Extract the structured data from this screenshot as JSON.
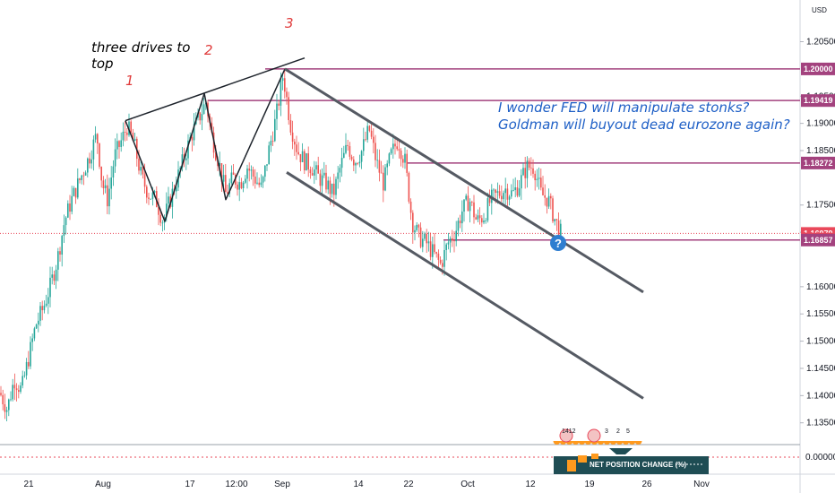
{
  "chart_data": {
    "type": "candlestick",
    "currency_label": "USD",
    "price_ticks": [
      "1.20500",
      "1.19500",
      "1.19000",
      "1.18500",
      "1.17500",
      "1.17000",
      "1.16000",
      "1.15500",
      "1.15000",
      "1.14500",
      "1.14000",
      "1.13500"
    ],
    "price_tick_values": [
      1.205,
      1.195,
      1.19,
      1.185,
      1.175,
      1.17,
      1.16,
      1.155,
      1.15,
      1.145,
      1.14,
      1.135
    ],
    "ylim": [
      1.131,
      1.212
    ],
    "x_ticks": [
      "21",
      "Aug",
      "17",
      "12:00",
      "Sep",
      "14",
      "22",
      "Oct",
      "12",
      "19",
      "26",
      "Nov"
    ],
    "levels": [
      {
        "label": "1.20000",
        "value": 1.2,
        "color": "#a3427e"
      },
      {
        "label": "1.19419",
        "value": 1.19419,
        "color": "#a3427e"
      },
      {
        "label": "1.18272",
        "value": 1.18272,
        "color": "#a3427e"
      },
      {
        "label": "1.16979",
        "value": 1.16979,
        "color": "#e9485a"
      },
      {
        "label": "39:24",
        "value": 1.16875,
        "color": "#e9485a"
      },
      {
        "label": "1.16857",
        "value": 1.16857,
        "color": "#a3427e"
      }
    ],
    "current_price": 1.16979,
    "countdown": "39:24",
    "indicator": {
      "label": "NET POSITION CHANGE (%)",
      "zero_tick": "0.00000"
    },
    "annotations": {
      "three_drives": [
        "three drives to",
        "top"
      ],
      "wave_labels": [
        "1",
        "2",
        "3"
      ],
      "comment": [
        "I wonder FED will manipulate stonks?",
        "Goldman will buyout dead eurozone again?"
      ],
      "question_mark": "?"
    },
    "events": {
      "label_a": "1412",
      "label_b": "3",
      "label_c": "2",
      "label_d": "5"
    },
    "series_path": [
      [
        0,
        1.1405
      ],
      [
        8,
        1.1375
      ],
      [
        16,
        1.143
      ],
      [
        24,
        1.141
      ],
      [
        32,
        1.147
      ],
      [
        40,
        1.153
      ],
      [
        48,
        1.156
      ],
      [
        56,
        1.16
      ],
      [
        64,
        1.165
      ],
      [
        72,
        1.172
      ],
      [
        80,
        1.176
      ],
      [
        90,
        1.18
      ],
      [
        100,
        1.184
      ],
      [
        108,
        1.188
      ],
      [
        114,
        1.179
      ],
      [
        120,
        1.176
      ],
      [
        128,
        1.184
      ],
      [
        136,
        1.187
      ],
      [
        142,
        1.1895
      ],
      [
        150,
        1.186
      ],
      [
        158,
        1.18
      ],
      [
        166,
        1.177
      ],
      [
        174,
        1.176
      ],
      [
        182,
        1.172
      ],
      [
        190,
        1.176
      ],
      [
        198,
        1.18
      ],
      [
        206,
        1.184
      ],
      [
        214,
        1.188
      ],
      [
        222,
        1.191
      ],
      [
        230,
        1.194
      ],
      [
        236,
        1.188
      ],
      [
        244,
        1.183
      ],
      [
        252,
        1.177
      ],
      [
        260,
        1.18
      ],
      [
        268,
        1.179
      ],
      [
        276,
        1.182
      ],
      [
        284,
        1.18
      ],
      [
        292,
        1.178
      ],
      [
        300,
        1.185
      ],
      [
        308,
        1.191
      ],
      [
        316,
        1.199
      ],
      [
        324,
        1.19
      ],
      [
        332,
        1.185
      ],
      [
        340,
        1.183
      ],
      [
        348,
        1.182
      ],
      [
        356,
        1.18
      ],
      [
        364,
        1.179
      ],
      [
        372,
        1.177
      ],
      [
        380,
        1.182
      ],
      [
        388,
        1.186
      ],
      [
        396,
        1.183
      ],
      [
        404,
        1.185
      ],
      [
        412,
        1.189
      ],
      [
        420,
        1.183
      ],
      [
        428,
        1.179
      ],
      [
        436,
        1.184
      ],
      [
        444,
        1.187
      ],
      [
        452,
        1.183
      ],
      [
        460,
        1.172
      ],
      [
        468,
        1.169
      ],
      [
        476,
        1.168
      ],
      [
        484,
        1.166
      ],
      [
        492,
        1.164
      ],
      [
        500,
        1.168
      ],
      [
        508,
        1.17
      ],
      [
        516,
        1.174
      ],
      [
        524,
        1.176
      ],
      [
        532,
        1.172
      ],
      [
        540,
        1.173
      ],
      [
        548,
        1.176
      ],
      [
        556,
        1.177
      ],
      [
        564,
        1.178
      ],
      [
        572,
        1.177
      ],
      [
        580,
        1.179
      ],
      [
        588,
        1.182
      ],
      [
        596,
        1.182
      ],
      [
        604,
        1.177
      ],
      [
        612,
        1.176
      ],
      [
        620,
        1.172
      ],
      [
        626,
        1.1698
      ]
    ],
    "drawn_lines": [
      {
        "name": "drive-line",
        "points": [
          [
            140,
            1.1905
          ],
          [
            184,
            1.172
          ],
          [
            228,
            1.1955
          ],
          [
            252,
            1.176
          ],
          [
            318,
            1.2
          ]
        ]
      },
      {
        "name": "top-trendline",
        "points": [
          [
            140,
            1.1905
          ],
          [
            340,
            1.202
          ]
        ]
      },
      {
        "name": "channel-upper",
        "points": [
          [
            318,
            1.2
          ],
          [
            718,
            1.159
          ]
        ]
      },
      {
        "name": "channel-lower",
        "points": [
          [
            320,
            1.181
          ],
          [
            718,
            1.1395
          ]
        ]
      }
    ]
  }
}
